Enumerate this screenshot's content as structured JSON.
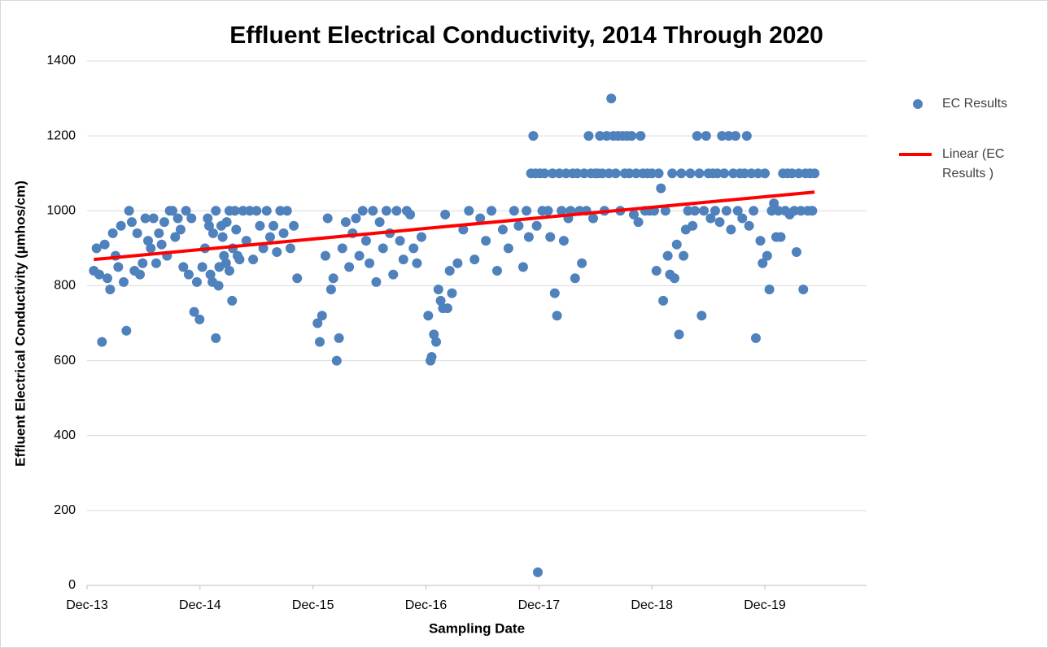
{
  "chart_data": {
    "type": "scatter",
    "title": "Effluent Electrical Conductivity, 2014 Through 2020",
    "x_label": "Sampling Date",
    "y_label": "Effluent Electrical Conductivity (µmhos/cm)",
    "xlim": [
      2013.92,
      2020.82
    ],
    "xticks": [
      {
        "value": 2013.92,
        "label": "Dec-13"
      },
      {
        "value": 2014.92,
        "label": "Dec-14"
      },
      {
        "value": 2015.92,
        "label": "Dec-15"
      },
      {
        "value": 2016.92,
        "label": "Dec-16"
      },
      {
        "value": 2017.92,
        "label": "Dec-17"
      },
      {
        "value": 2018.92,
        "label": "Dec-18"
      },
      {
        "value": 2019.92,
        "label": "Dec-19"
      }
    ],
    "ylim": [
      0,
      1400
    ],
    "yticks": [
      0,
      200,
      400,
      600,
      800,
      1000,
      1200,
      1400
    ],
    "grid": true,
    "legend": "right",
    "series": [
      {
        "name": "EC Results",
        "type": "scatter",
        "color": "#4f81bd",
        "x": [
          2013.98,
          2014.004,
          2014.028,
          2014.052,
          2014.076,
          2014.1,
          2014.124,
          2014.148,
          2014.172,
          2014.196,
          2014.22,
          2014.244,
          2014.268,
          2014.292,
          2014.316,
          2014.34,
          2014.364,
          2014.388,
          2014.412,
          2014.436,
          2014.46,
          2014.484,
          2014.508,
          2014.532,
          2014.556,
          2014.58,
          2014.604,
          2014.628,
          2014.652,
          2014.676,
          2014.7,
          2014.724,
          2014.748,
          2014.772,
          2014.796,
          2014.82,
          2014.844,
          2014.868,
          2014.892,
          2014.916,
          2014.94,
          2014.964,
          2014.988,
          2015.012,
          2015.036,
          2015.06,
          2015.084,
          2015.108,
          2015.132,
          2015.156,
          2015.18,
          2015.204,
          2015.228,
          2015.252,
          2015.0,
          2015.03,
          2015.06,
          2015.09,
          2015.12,
          2015.15,
          2015.18,
          2015.21,
          2015.24,
          2015.27,
          2015.3,
          2015.33,
          2015.36,
          2015.39,
          2015.42,
          2015.45,
          2015.48,
          2015.51,
          2015.54,
          2015.57,
          2015.6,
          2015.63,
          2015.66,
          2015.69,
          2015.72,
          2015.75,
          2015.78,
          2015.96,
          2015.98,
          2016.0,
          2016.03,
          2016.05,
          2016.08,
          2016.1,
          2016.13,
          2016.15,
          2016.18,
          2016.21,
          2016.24,
          2016.27,
          2016.3,
          2016.33,
          2016.36,
          2016.39,
          2016.42,
          2016.45,
          2016.48,
          2016.51,
          2016.54,
          2016.57,
          2016.6,
          2016.63,
          2016.66,
          2016.69,
          2016.72,
          2016.75,
          2016.78,
          2016.81,
          2016.84,
          2016.88,
          2016.94,
          2016.96,
          2016.97,
          2016.99,
          2017.01,
          2017.03,
          2017.05,
          2017.07,
          2017.09,
          2017.11,
          2017.13,
          2017.15,
          2017.2,
          2017.25,
          2017.3,
          2017.35,
          2017.4,
          2017.45,
          2017.5,
          2017.55,
          2017.6,
          2017.65,
          2017.7,
          2017.74,
          2017.78,
          2017.81,
          2017.83,
          2017.85,
          2017.87,
          2017.89,
          2017.9,
          2017.93,
          2017.95,
          2017.97,
          2017.91,
          2018.0,
          2018.02,
          2018.04,
          2018.06,
          2018.08,
          2018.1,
          2018.12,
          2018.14,
          2018.16,
          2018.18,
          2018.2,
          2018.22,
          2018.24,
          2018.26,
          2018.28,
          2018.3,
          2018.32,
          2018.34,
          2018.36,
          2018.38,
          2018.4,
          2018.42,
          2018.44,
          2018.46,
          2018.48,
          2018.5,
          2018.52,
          2018.54,
          2018.56,
          2018.58,
          2018.6,
          2018.62,
          2018.64,
          2018.66,
          2018.68,
          2018.7,
          2018.72,
          2018.74,
          2018.76,
          2018.78,
          2018.8,
          2018.82,
          2018.84,
          2018.86,
          2018.88,
          2018.9,
          2018.92,
          2018.94,
          2018.96,
          2018.98,
          2019.0,
          2019.02,
          2019.04,
          2019.06,
          2019.08,
          2019.1,
          2019.12,
          2019.14,
          2019.16,
          2019.18,
          2019.2,
          2019.22,
          2019.24,
          2019.26,
          2019.28,
          2019.3,
          2019.32,
          2019.34,
          2019.36,
          2019.38,
          2019.4,
          2019.42,
          2019.44,
          2019.46,
          2019.48,
          2019.5,
          2019.52,
          2019.54,
          2019.56,
          2019.58,
          2019.6,
          2019.62,
          2019.64,
          2019.66,
          2019.68,
          2019.7,
          2019.72,
          2019.74,
          2019.76,
          2019.78,
          2019.8,
          2019.82,
          2019.84,
          2019.86,
          2019.88,
          2019.9,
          2019.92,
          2019.94,
          2019.96,
          2019.98,
          2020.0,
          2020.02,
          2020.04,
          2020.06,
          2020.08,
          2020.1,
          2020.12,
          2020.14,
          2020.16,
          2020.18,
          2020.2,
          2020.22,
          2020.24,
          2020.26,
          2020.28,
          2020.3,
          2020.32,
          2020.34,
          2020.36
        ],
        "values": [
          840,
          900,
          830,
          650,
          910,
          820,
          790,
          940,
          880,
          850,
          960,
          810,
          680,
          1000,
          970,
          840,
          940,
          830,
          860,
          980,
          920,
          900,
          980,
          860,
          940,
          910,
          970,
          880,
          1000,
          1000,
          930,
          980,
          950,
          850,
          1000,
          830,
          980,
          730,
          810,
          710,
          850,
          900,
          980,
          830,
          940,
          660,
          800,
          960,
          880,
          970,
          840,
          760,
          1000,
          880,
          960,
          810,
          1000,
          850,
          930,
          860,
          1000,
          900,
          950,
          870,
          1000,
          920,
          1000,
          870,
          1000,
          960,
          900,
          1000,
          930,
          960,
          890,
          1000,
          940,
          1000,
          900,
          960,
          820,
          700,
          650,
          720,
          880,
          980,
          790,
          820,
          600,
          660,
          900,
          970,
          850,
          940,
          980,
          880,
          1000,
          920,
          860,
          1000,
          810,
          970,
          900,
          1000,
          940,
          830,
          1000,
          920,
          870,
          1000,
          990,
          900,
          860,
          930,
          720,
          600,
          610,
          670,
          650,
          790,
          760,
          740,
          990,
          740,
          840,
          780,
          860,
          950,
          1000,
          870,
          980,
          920,
          1000,
          840,
          950,
          900,
          1000,
          960,
          850,
          1000,
          930,
          1100,
          1200,
          1100,
          960,
          1100,
          1000,
          1100,
          35,
          1000,
          930,
          1100,
          780,
          720,
          1100,
          1000,
          920,
          1100,
          980,
          1000,
          1100,
          820,
          1100,
          1000,
          860,
          1100,
          1000,
          1200,
          1100,
          980,
          1100,
          1100,
          1200,
          1100,
          1000,
          1200,
          1100,
          1300,
          1200,
          1100,
          1200,
          1000,
          1200,
          1100,
          1200,
          1100,
          1200,
          990,
          1100,
          970,
          1200,
          1100,
          1000,
          1100,
          1000,
          1100,
          1000,
          840,
          1100,
          1060,
          760,
          1000,
          880,
          830,
          1100,
          820,
          910,
          670,
          1100,
          880,
          950,
          1000,
          1100,
          960,
          1000,
          1200,
          1100,
          720,
          1000,
          1200,
          1100,
          980,
          1100,
          1000,
          1100,
          970,
          1200,
          1100,
          1000,
          1200,
          950,
          1100,
          1200,
          1000,
          1100,
          980,
          1100,
          1200,
          960,
          1100,
          1000,
          660,
          1100,
          920,
          860,
          1100,
          880,
          790,
          1000,
          1020,
          930,
          1000,
          930,
          1100,
          1000,
          1100,
          990,
          1100,
          1000,
          890,
          1100,
          1000,
          790,
          1100,
          1000,
          1100,
          1000,
          1100
        ]
      },
      {
        "name": "Linear (EC Results )",
        "type": "line",
        "color": "#ff0000",
        "x": [
          2013.98,
          2020.36
        ],
        "values": [
          870,
          1050
        ]
      }
    ]
  }
}
